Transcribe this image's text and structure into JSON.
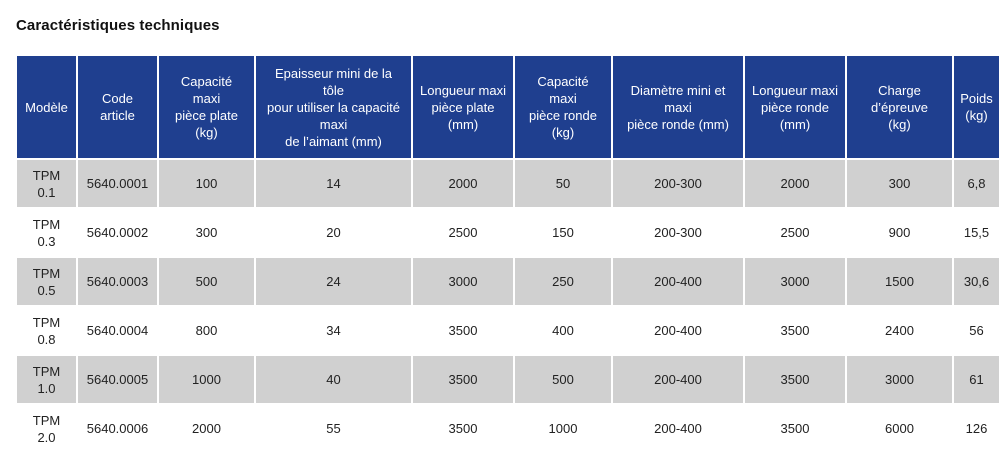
{
  "title": "Caractéristiques techniques",
  "columns": [
    "Modèle",
    "Code\narticle",
    "Capacité\nmaxi\npièce plate\n(kg)",
    "Epaisseur mini de la\ntôle\npour utiliser la capacité\nmaxi\nde l’aimant (mm)",
    "Longueur maxi\npièce plate\n(mm)",
    "Capacité\nmaxi\npièce ronde\n(kg)",
    "Diamètre mini et\nmaxi\npièce ronde (mm)",
    "Longueur maxi\npièce ronde\n(mm)",
    "Charge\nd’épreuve\n(kg)",
    "Poids\n(kg)"
  ],
  "rows": [
    [
      "TPM\n0.1",
      "5640.0001",
      "100",
      "14",
      "2000",
      "50",
      "200-300",
      "2000",
      "300",
      "6,8"
    ],
    [
      "TPM\n0.3",
      "5640.0002",
      "300",
      "20",
      "2500",
      "150",
      "200-300",
      "2500",
      "900",
      "15,5"
    ],
    [
      "TPM\n0.5",
      "5640.0003",
      "500",
      "24",
      "3000",
      "250",
      "200-400",
      "3000",
      "1500",
      "30,6"
    ],
    [
      "TPM\n0.8",
      "5640.0004",
      "800",
      "34",
      "3500",
      "400",
      "200-400",
      "3500",
      "2400",
      "56"
    ],
    [
      "TPM\n1.0",
      "5640.0005",
      "1000",
      "40",
      "3500",
      "500",
      "200-400",
      "3500",
      "3000",
      "61"
    ],
    [
      "TPM\n2.0",
      "5640.0006",
      "2000",
      "55",
      "3500",
      "1000",
      "200-400",
      "3500",
      "6000",
      "126"
    ]
  ],
  "colors": {
    "header_bg": "#1f3f8f",
    "header_text": "#ffffff",
    "row_shaded": "#d0d0d0",
    "row_plain": "#ffffff"
  }
}
